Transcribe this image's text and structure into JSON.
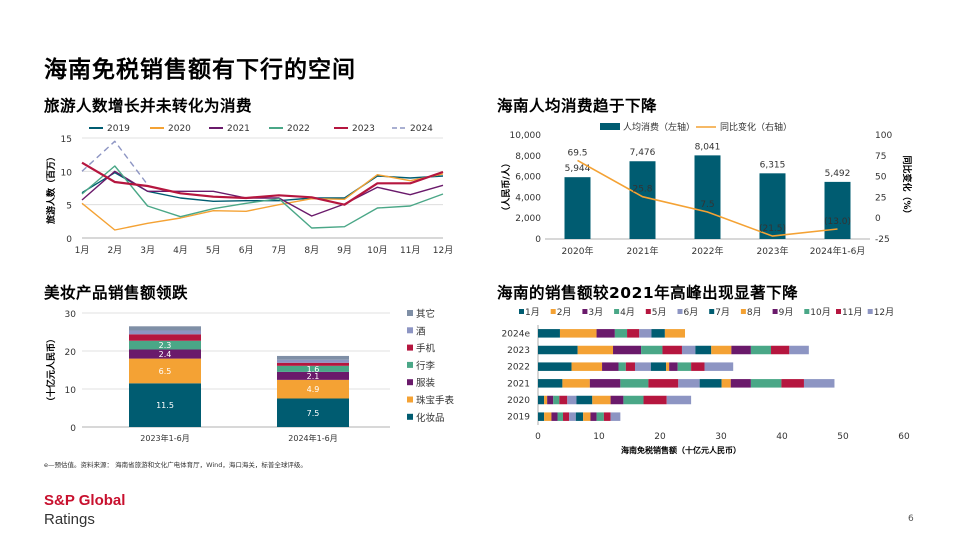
{
  "page": {
    "title": "海南免税销售额有下行的空间",
    "footnote": "e—预估值。资料来源： 海南省旅游和文化广电体育厅，Wind，海口海关，标普全球评级。",
    "logo_line1": "S&P Global",
    "logo_line2": "Ratings",
    "page_number": "6"
  },
  "colors": {
    "y2019": "#005c71",
    "y2020": "#f4a234",
    "y2021": "#6a1a6b",
    "y2022": "#4aa787",
    "y2023": "#b5163f",
    "y2024": "#8d95c3",
    "gray": "#7f8fa6",
    "maroon": "#c8102e"
  },
  "chart_data": [
    {
      "id": "tourists",
      "type": "line",
      "title": "旅游人数增长并未转化为消费",
      "ylabel": "旅游人数（百万）",
      "ylim": [
        0,
        15
      ],
      "yticks": [
        0,
        5,
        10,
        15
      ],
      "categories": [
        "1月",
        "2月",
        "3月",
        "4月",
        "5月",
        "6月",
        "7月",
        "8月",
        "9月",
        "10月",
        "11月",
        "12月"
      ],
      "series": [
        {
          "name": "2019",
          "color": "#005c71",
          "values": [
            6.8,
            9.8,
            7.0,
            6.0,
            5.5,
            5.6,
            5.6,
            6.0,
            6.0,
            9.3,
            9.0,
            9.3
          ]
        },
        {
          "name": "2020",
          "color": "#f4a234",
          "values": [
            5.2,
            1.2,
            2.2,
            3.0,
            4.1,
            4.0,
            5.0,
            5.9,
            5.8,
            9.5,
            8.6,
            9.6
          ]
        },
        {
          "name": "2021",
          "color": "#6a1a6b",
          "values": [
            5.7,
            10.0,
            7.0,
            7.0,
            7.0,
            6.0,
            6.0,
            3.3,
            5.1,
            7.6,
            6.5,
            7.9
          ]
        },
        {
          "name": "2022",
          "color": "#4aa787",
          "values": [
            6.6,
            10.8,
            4.8,
            3.2,
            4.4,
            5.2,
            5.9,
            1.5,
            1.7,
            4.5,
            4.8,
            6.6
          ]
        },
        {
          "name": "2023",
          "color": "#b5163f",
          "values": [
            11.3,
            8.4,
            7.8,
            6.7,
            6.2,
            6.0,
            6.4,
            6.1,
            5.0,
            8.2,
            8.2,
            9.9
          ]
        },
        {
          "name": "2024",
          "color": "#8d95c3",
          "dashed": true,
          "values": [
            10.0,
            14.5,
            8.0,
            null,
            null,
            null,
            null,
            null,
            null,
            null,
            null,
            null
          ]
        }
      ]
    },
    {
      "id": "spend",
      "type": "bar+line",
      "title": "海南人均消费趋于下降",
      "ylabel_left": "（人民币/人）",
      "ylabel_right": "同比变化（%）",
      "categories": [
        "2020年",
        "2021年",
        "2022年",
        "2023年",
        "2024年1-6月"
      ],
      "bar_series": {
        "name": "人均消费（左轴）",
        "color": "#005c71",
        "values": [
          5944,
          7476,
          8041,
          6315,
          5492
        ],
        "labels": [
          "5,944",
          "7,476",
          "8,041",
          "6,315",
          "5,492"
        ]
      },
      "line_series": {
        "name": "同比变化（右轴）",
        "color": "#f4a234",
        "values": [
          69.5,
          25.8,
          7.5,
          -21.5,
          -13.0
        ],
        "labels": [
          "69.5",
          "25.8",
          "7.5",
          "(21.5)",
          "(13.0)"
        ]
      },
      "ylim_left": [
        0,
        10000
      ],
      "yticks_left": [
        "0",
        "2,000",
        "4,000",
        "6,000",
        "8,000",
        "10,000"
      ],
      "ylim_right": [
        -25,
        100
      ],
      "yticks_right": [
        "-25",
        "0",
        "25",
        "50",
        "75",
        "100"
      ]
    },
    {
      "id": "beauty",
      "type": "stacked_bar",
      "title": "美妆产品销售额领跌",
      "ylabel": "（十亿元人民币）",
      "ylim": [
        0,
        30
      ],
      "yticks": [
        0,
        10,
        20,
        30
      ],
      "categories": [
        "2023年1-6月",
        "2024年1-6月"
      ],
      "series": [
        {
          "name": "化妆品",
          "color": "#005c71",
          "values": [
            11.5,
            7.5
          ],
          "labels": [
            "11.5",
            "7.5"
          ]
        },
        {
          "name": "珠宝手表",
          "color": "#f4a234",
          "values": [
            6.5,
            4.9
          ],
          "labels": [
            "6.5",
            "4.9"
          ]
        },
        {
          "name": "服装",
          "color": "#6a1a6b",
          "values": [
            2.4,
            2.1
          ],
          "labels": [
            "2.4",
            "2.1"
          ]
        },
        {
          "name": "行李",
          "color": "#4aa787",
          "values": [
            2.3,
            1.6
          ],
          "labels": [
            "2.3",
            "1.6"
          ]
        },
        {
          "name": "手机",
          "color": "#b5163f",
          "values": [
            1.7,
            0.8
          ],
          "labels": [
            "",
            ""
          ]
        },
        {
          "name": "酒",
          "color": "#8d95c3",
          "values": [
            1.0,
            0.8
          ],
          "labels": [
            "",
            ""
          ]
        },
        {
          "name": "其它",
          "color": "#7f8fa6",
          "values": [
            1.1,
            1.0
          ],
          "labels": [
            "",
            ""
          ]
        }
      ]
    },
    {
      "id": "monthly",
      "type": "stacked_barh",
      "title": "海南的销售额较2021年高峰出现显著下降",
      "xlabel": "海南免税销售额（十亿元人民币）",
      "xlim": [
        0,
        60
      ],
      "xticks": [
        0,
        10,
        20,
        30,
        40,
        50,
        60
      ],
      "categories": [
        "2024e",
        "2023",
        "2022",
        "2021",
        "2020",
        "2019"
      ],
      "series": [
        {
          "name": "1月",
          "color": "#005c71",
          "values": [
            3.6,
            6.5,
            5.5,
            4.0,
            1.0,
            1.0
          ]
        },
        {
          "name": "2月",
          "color": "#f4a234",
          "values": [
            6.0,
            5.8,
            5.0,
            4.5,
            0.5,
            1.2
          ]
        },
        {
          "name": "3月",
          "color": "#6a1a6b",
          "values": [
            3.0,
            4.6,
            2.7,
            5.0,
            1.0,
            1.0
          ]
        },
        {
          "name": "4月",
          "color": "#4aa787",
          "values": [
            2.0,
            3.5,
            1.2,
            4.6,
            1.0,
            0.9
          ]
        },
        {
          "name": "5月",
          "color": "#b5163f",
          "values": [
            2.0,
            3.2,
            1.5,
            4.9,
            1.3,
            1.0
          ]
        },
        {
          "name": "6月",
          "color": "#8d95c3",
          "values": [
            2.0,
            2.2,
            2.6,
            3.5,
            1.5,
            1.1
          ]
        },
        {
          "name": "7月",
          "color": "#005c71",
          "values": [
            2.2,
            2.6,
            2.5,
            3.6,
            2.6,
            1.2
          ]
        },
        {
          "name": "8月",
          "color": "#f4a234",
          "values": [
            3.3,
            3.3,
            0.5,
            1.5,
            3.0,
            1.2
          ]
        },
        {
          "name": "9月",
          "color": "#6a1a6b",
          "values": [
            0,
            3.2,
            1.4,
            3.3,
            2.1,
            1.0
          ]
        },
        {
          "name": "10月",
          "color": "#4aa787",
          "values": [
            0,
            3.3,
            2.2,
            5.0,
            3.3,
            1.2
          ]
        },
        {
          "name": "11月",
          "color": "#b5163f",
          "values": [
            0,
            3.0,
            2.2,
            3.7,
            3.8,
            1.1
          ]
        },
        {
          "name": "12月",
          "color": "#8d95c3",
          "values": [
            0,
            3.2,
            4.7,
            5.0,
            4.0,
            1.6
          ]
        }
      ]
    }
  ]
}
